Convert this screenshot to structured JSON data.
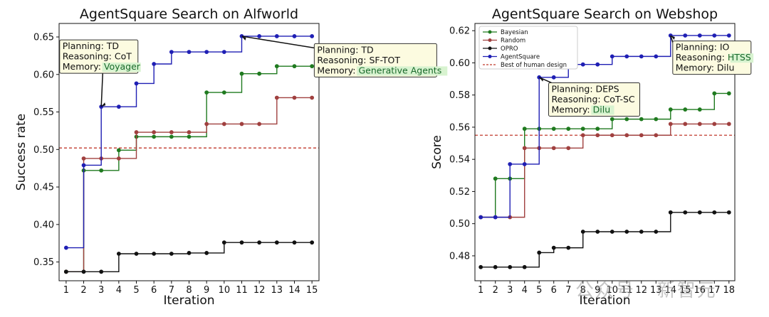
{
  "watermark": "公众号 · 新智元",
  "chart_data": [
    {
      "type": "line",
      "title": "AgentSquare Search on Alfworld",
      "xlabel": "Iteration",
      "ylabel": "Success rate",
      "x": [
        1,
        2,
        3,
        4,
        5,
        6,
        7,
        8,
        9,
        10,
        11,
        12,
        13,
        14,
        15
      ],
      "xlim": [
        0.6,
        15.4
      ],
      "ylim": [
        0.325,
        0.668
      ],
      "yticks": [
        0.35,
        0.4,
        0.45,
        0.5,
        0.55,
        0.6,
        0.65
      ],
      "ytick_labels": [
        "0.35",
        "0.40",
        "0.45",
        "0.50",
        "0.55",
        "0.60",
        "0.65"
      ],
      "grid": false,
      "step": true,
      "colors": {
        "green": "#1f7a1f",
        "brown": "#a0403f",
        "black": "#111111",
        "blue": "#1f1fb4",
        "red": "#c0392b"
      },
      "series": [
        {
          "color": "green",
          "values": [
            0.337,
            0.472,
            0.472,
            0.499,
            0.517,
            0.517,
            0.517,
            0.517,
            0.576,
            0.576,
            0.601,
            0.601,
            0.611,
            0.611,
            0.611
          ]
        },
        {
          "color": "brown",
          "values": [
            0.337,
            0.488,
            0.488,
            0.488,
            0.523,
            0.523,
            0.523,
            0.523,
            0.534,
            0.534,
            0.534,
            0.534,
            0.569,
            0.569,
            0.569
          ]
        },
        {
          "color": "black",
          "values": [
            0.337,
            0.337,
            0.337,
            0.361,
            0.361,
            0.361,
            0.361,
            0.362,
            0.362,
            0.376,
            0.376,
            0.376,
            0.376,
            0.376,
            0.376
          ]
        },
        {
          "color": "blue",
          "values": [
            0.369,
            0.479,
            0.557,
            0.557,
            0.588,
            0.614,
            0.63,
            0.63,
            0.63,
            0.63,
            0.651,
            0.651,
            0.651,
            0.651,
            0.651
          ]
        }
      ],
      "baseline": {
        "value": 0.502,
        "color": "red"
      },
      "annotations": [
        {
          "lines": [
            {
              "label": "Planning: ",
              "value": "TD",
              "hl": false
            },
            {
              "label": "Reasoning: ",
              "value": "CoT",
              "hl": false
            },
            {
              "label": "Memory: ",
              "value": "Voyager",
              "hl": true
            }
          ],
          "target": [
            3,
            0.557
          ],
          "text_at": [
            0.55,
            0.648
          ]
        },
        {
          "lines": [
            {
              "label": "Planning: ",
              "value": "TD",
              "hl": false
            },
            {
              "label": "Reasoning: ",
              "value": "SF-TOT",
              "hl": false
            },
            {
              "label": "Memory: ",
              "value": "Generative Agents",
              "hl": true
            }
          ],
          "target": [
            11,
            0.651
          ],
          "text_at": [
            15.05,
            0.643
          ]
        }
      ]
    },
    {
      "type": "line",
      "title": "AgentSquare Search on Webshop",
      "xlabel": "Iteration",
      "ylabel": "Score",
      "x": [
        1,
        2,
        3,
        4,
        5,
        6,
        7,
        8,
        9,
        10,
        11,
        12,
        13,
        14,
        15,
        16,
        17,
        18
      ],
      "xlim": [
        0.6,
        18.4
      ],
      "ylim": [
        0.4645,
        0.6245
      ],
      "yticks": [
        0.48,
        0.5,
        0.52,
        0.54,
        0.56,
        0.58,
        0.6,
        0.62
      ],
      "ytick_labels": [
        "0.48",
        "0.50",
        "0.52",
        "0.54",
        "0.56",
        "0.58",
        "0.60",
        "0.62"
      ],
      "grid": false,
      "step": true,
      "colors": {
        "green": "#1f7a1f",
        "brown": "#a0403f",
        "black": "#111111",
        "blue": "#1f1fb4",
        "red": "#c0392b"
      },
      "legend": {
        "position": "top-left",
        "entries": [
          {
            "label": "Bayesian",
            "color": "green"
          },
          {
            "label": "Random",
            "color": "brown"
          },
          {
            "label": "OPRO",
            "color": "black"
          },
          {
            "label": "AgentSquare",
            "color": "blue"
          },
          {
            "label": "Best of human design",
            "color": "red",
            "dashed": true
          }
        ]
      },
      "series": [
        {
          "name": "Bayesian",
          "color": "green",
          "values": [
            0.504,
            0.528,
            0.528,
            0.559,
            0.559,
            0.559,
            0.559,
            0.559,
            0.559,
            0.565,
            0.565,
            0.565,
            0.565,
            0.571,
            0.571,
            0.571,
            0.581,
            0.581
          ]
        },
        {
          "name": "Random",
          "color": "brown",
          "values": [
            0.504,
            0.504,
            0.504,
            0.547,
            0.547,
            0.547,
            0.547,
            0.555,
            0.555,
            0.555,
            0.555,
            0.555,
            0.555,
            0.562,
            0.562,
            0.562,
            0.562,
            0.562
          ]
        },
        {
          "name": "OPRO",
          "color": "black",
          "values": [
            0.473,
            0.473,
            0.473,
            0.473,
            0.482,
            0.485,
            0.485,
            0.495,
            0.495,
            0.495,
            0.495,
            0.495,
            0.495,
            0.507,
            0.507,
            0.507,
            0.507,
            0.507
          ]
        },
        {
          "name": "AgentSquare",
          "color": "blue",
          "values": [
            0.504,
            0.504,
            0.537,
            0.537,
            0.591,
            0.591,
            0.599,
            0.599,
            0.599,
            0.604,
            0.604,
            0.604,
            0.604,
            0.617,
            0.617,
            0.617,
            0.617,
            0.617
          ]
        }
      ],
      "baseline": {
        "name": "Best of human design",
        "value": 0.555,
        "color": "red"
      },
      "annotations": [
        {
          "lines": [
            {
              "label": "Planning: ",
              "value": "DEPS",
              "hl": false
            },
            {
              "label": "Reasoning: ",
              "value": "CoT-SC",
              "hl": false
            },
            {
              "label": "Memory: ",
              "value": "Dilu",
              "hl": true
            }
          ],
          "target": [
            5,
            0.591
          ],
          "text_at": [
            5.55,
            0.5885
          ]
        },
        {
          "lines": [
            {
              "label": "Planning: ",
              "value": "IO",
              "hl": false
            },
            {
              "label": "Reasoning: ",
              "value": "HTSS",
              "hl": true
            },
            {
              "label": "Memory: ",
              "value": "Dilu",
              "hl": false
            }
          ],
          "target": [
            14,
            0.617
          ],
          "text_at": [
            14.05,
            0.6145
          ]
        }
      ]
    }
  ]
}
